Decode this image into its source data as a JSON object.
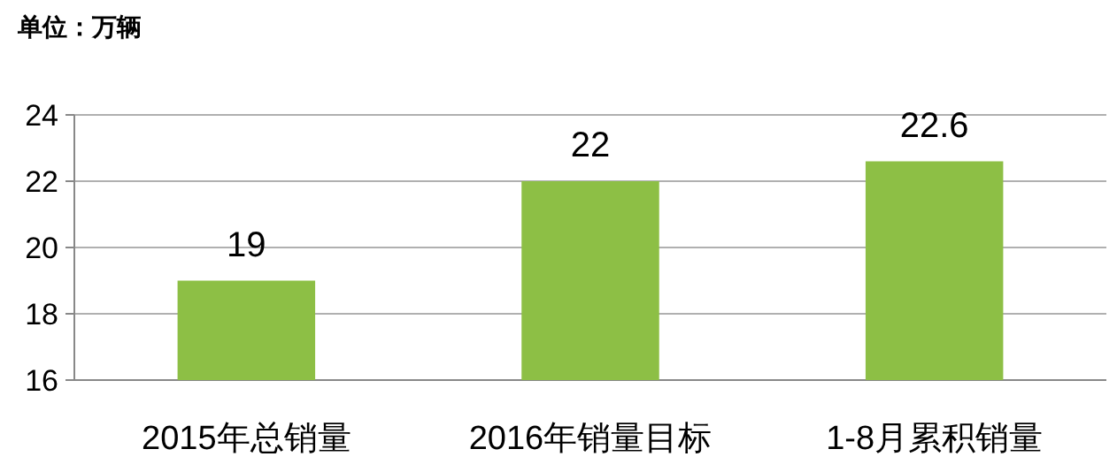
{
  "chart_data": {
    "type": "bar",
    "title": "单位：万辆",
    "categories": [
      "2015年总销量",
      "2016年销量目标",
      "1-8月累积销量"
    ],
    "values": [
      19,
      22,
      22.6
    ],
    "color": "#8dbf45",
    "ylim": [
      16,
      24
    ],
    "yticks": [
      16,
      18,
      20,
      22,
      24
    ],
    "grid": "y",
    "data_labels": true
  }
}
